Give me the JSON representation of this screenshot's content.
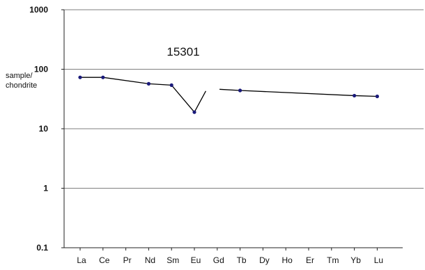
{
  "chart_data": {
    "type": "line",
    "title": "15301",
    "ylabel_lines": [
      "sample/",
      "chondrite"
    ],
    "xlabel": "",
    "yscale": "log",
    "ylim": [
      0.1,
      1000
    ],
    "grid": true,
    "legend": "none",
    "categories": [
      "La",
      "Ce",
      "Pr",
      "Nd",
      "Sm",
      "Eu",
      "Gd",
      "Tb",
      "Dy",
      "Ho",
      "Er",
      "Tm",
      "Yb",
      "Lu"
    ],
    "y_ticks": [
      "1000",
      "100",
      "10",
      "1",
      "0.1"
    ],
    "y_tick_values": [
      1000,
      100,
      10,
      1,
      0.1
    ],
    "series": [
      {
        "color": "#000000",
        "marker_color": "#1a1a7a",
        "segments": [
          [
            {
              "x": "La",
              "y": 73,
              "marker": true
            },
            {
              "x": "Ce",
              "y": 73,
              "marker": true
            },
            {
              "x": "Nd",
              "y": 57,
              "marker": true
            },
            {
              "x": "Sm",
              "y": 54,
              "marker": true
            },
            {
              "x": "Eu",
              "y": 19,
              "marker": true
            },
            {
              "x": 5.5,
              "y": 43,
              "marker": false
            }
          ],
          [
            {
              "x": 6.1,
              "y": 46,
              "marker": false
            },
            {
              "x": "Tb",
              "y": 44,
              "marker": true
            },
            {
              "x": "Yb",
              "y": 36,
              "marker": true
            },
            {
              "x": "Lu",
              "y": 35,
              "marker": true
            }
          ]
        ]
      }
    ]
  }
}
